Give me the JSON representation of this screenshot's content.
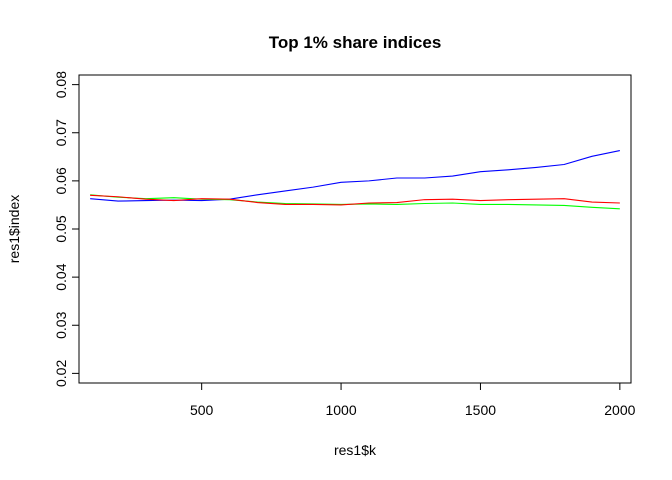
{
  "chart_data": {
    "type": "line",
    "title": "Top 1% share indices",
    "xlabel": "res1$k",
    "ylabel": "res1$index",
    "xlim": [
      60,
      2040
    ],
    "ylim": [
      0.018,
      0.082
    ],
    "x_ticks": [
      500,
      1000,
      1500,
      2000
    ],
    "y_ticks": [
      0.02,
      0.03,
      0.04,
      0.05,
      0.06,
      0.07,
      0.08
    ],
    "x_tick_labels": [
      "500",
      "1000",
      "1500",
      "2000"
    ],
    "y_tick_labels": [
      "0.02",
      "0.03",
      "0.04",
      "0.05",
      "0.06",
      "0.07",
      "0.08"
    ],
    "grid": false,
    "x": [
      100,
      200,
      300,
      400,
      500,
      600,
      700,
      800,
      900,
      1000,
      1100,
      1200,
      1300,
      1400,
      1500,
      1600,
      1700,
      1800,
      1900,
      2000
    ],
    "series": [
      {
        "color": "#0000ff",
        "values": [
          0.0563,
          0.0558,
          0.0559,
          0.056,
          0.0559,
          0.0562,
          0.0571,
          0.0579,
          0.0587,
          0.0597,
          0.06,
          0.0606,
          0.0606,
          0.061,
          0.0619,
          0.0623,
          0.0628,
          0.0634,
          0.0651,
          0.0663
        ]
      },
      {
        "color": "#00ff00",
        "values": [
          0.0571,
          0.0566,
          0.0563,
          0.0565,
          0.0562,
          0.0561,
          0.0556,
          0.0553,
          0.0552,
          0.0551,
          0.0552,
          0.0551,
          0.0553,
          0.0554,
          0.0551,
          0.0551,
          0.055,
          0.0549,
          0.0545,
          0.0542
        ]
      },
      {
        "color": "#ff0000",
        "values": [
          0.057,
          0.0567,
          0.0562,
          0.0559,
          0.0563,
          0.0562,
          0.0555,
          0.0551,
          0.0551,
          0.055,
          0.0554,
          0.0555,
          0.0561,
          0.0562,
          0.0559,
          0.0561,
          0.0562,
          0.0563,
          0.0556,
          0.0554
        ]
      }
    ]
  }
}
